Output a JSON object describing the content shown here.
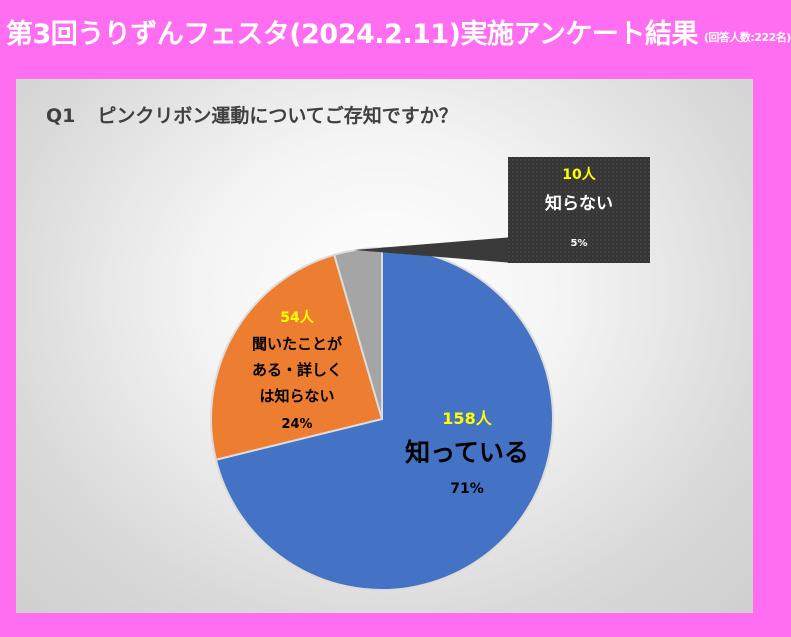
{
  "header": {
    "title": "第3回うりずんフェスタ(2024.2.11)実施アンケート結果",
    "note": "(回答人数:222名)"
  },
  "question": {
    "number": "Q1",
    "text": "ピンクリボン運動についてご存知ですか？"
  },
  "chart_data": {
    "type": "pie",
    "total": 222,
    "slices": [
      {
        "label": "知っている",
        "count_label": "158人",
        "count": 158,
        "percent": 71,
        "percent_label": "71%",
        "color": "#4472c4"
      },
      {
        "label": "聞いたことがある・詳しくは知らない",
        "label_lines": [
          "聞いたことが",
          "ある・詳しく",
          "は知らない"
        ],
        "count_label": "54人",
        "count": 54,
        "percent": 24,
        "percent_label": "24%",
        "color": "#ed7d31"
      },
      {
        "label": "知らない",
        "count_label": "10人",
        "count": 10,
        "percent": 5,
        "percent_label": "5%",
        "color": "#a5a5a5"
      }
    ],
    "count_label_color": "#ffff00",
    "callout_color": "#3a3a3a"
  }
}
